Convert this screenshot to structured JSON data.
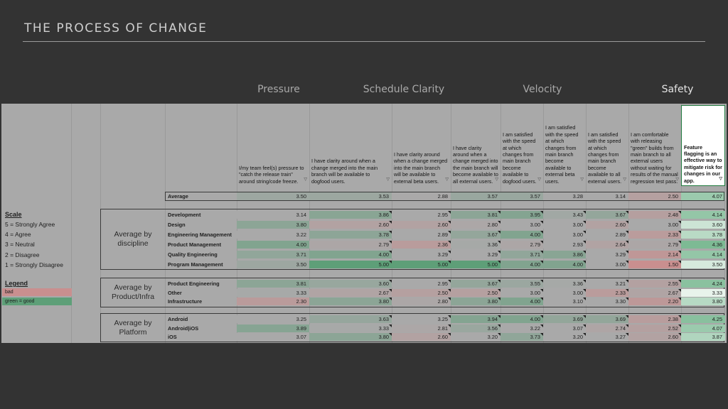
{
  "slide": {
    "title": "THE PROCESS OF CHANGE"
  },
  "categories": [
    {
      "label": "Pressure"
    },
    {
      "label": "Schedule Clarity"
    },
    {
      "label": "Velocity"
    },
    {
      "label": "Safety"
    }
  ],
  "questions": [
    "I/my team feel(s) pressure to \"catch the release train\" around string/code freeze.",
    "I have clarity around when a change merged into the main branch will be available to dogfood users.",
    "I have clarity around when a change merged into the main branch will be available to external beta users.",
    "I have clarity around when a change merged into the main branch will become available to all external users.",
    "I am satisfied with the speed at which changes from main branch become available to dogfood users.",
    "I am satisfied with the speed at which changes from main branch become available to external beta users.",
    "I am satisfied with the speed at which changes from main branch become available to all external users.",
    "I am comfortable with releasing \"green\" builds from main branch to all external users without waiting for results of the manual regression test pass.",
    "Feature flagging is an effective way to mitigate risk for changes in our app."
  ],
  "average_row": {
    "label": "Average",
    "values": [
      "3.50",
      "3.53",
      "2.88",
      "3.57",
      "3.57",
      "3.28",
      "3.14",
      "2.50",
      "4.07"
    ]
  },
  "groups": [
    {
      "title": "Average by discipline",
      "rows": [
        {
          "label": "Development",
          "values": [
            "3.14",
            "3.86",
            "2.95",
            "3.81",
            "3.95",
            "3.43",
            "3.67",
            "2.48",
            "4.14"
          ]
        },
        {
          "label": "Design",
          "values": [
            "3.80",
            "2.60",
            "2.60",
            "2.80",
            "3.00",
            "3.00",
            "2.60",
            "3.00",
            "3.60"
          ]
        },
        {
          "label": "Engineering Management",
          "values": [
            "3.22",
            "3.78",
            "2.89",
            "3.67",
            "4.00",
            "3.00",
            "2.89",
            "2.33",
            "3.78"
          ]
        },
        {
          "label": "Product Management",
          "values": [
            "4.00",
            "2.79",
            "2.36",
            "3.36",
            "2.79",
            "2.93",
            "2.64",
            "2.79",
            "4.36"
          ]
        },
        {
          "label": "Quality Engineering",
          "values": [
            "3.71",
            "4.00",
            "3.29",
            "3.29",
            "3.71",
            "3.86",
            "3.29",
            "2.14",
            "4.14"
          ]
        },
        {
          "label": "Program Management",
          "values": [
            "3.50",
            "5.00",
            "5.00",
            "5.00",
            "4.00",
            "4.00",
            "3.00",
            "1.50",
            "3.50"
          ]
        }
      ]
    },
    {
      "title": "Average by Product/Infra",
      "rows": [
        {
          "label": "Product Engineering",
          "values": [
            "3.81",
            "3.60",
            "2.95",
            "3.67",
            "3.55",
            "3.36",
            "3.21",
            "2.55",
            "4.24"
          ]
        },
        {
          "label": "Other",
          "values": [
            "3.33",
            "2.67",
            "2.50",
            "2.50",
            "3.00",
            "3.00",
            "2.33",
            "2.67",
            "3.33"
          ]
        },
        {
          "label": "Infrastructure",
          "values": [
            "2.30",
            "3.80",
            "2.80",
            "3.80",
            "4.00",
            "3.10",
            "3.30",
            "2.20",
            "3.80"
          ]
        }
      ]
    },
    {
      "title": "Average by Platform",
      "rows": [
        {
          "label": "Android",
          "values": [
            "3.25",
            "3.63",
            "3.25",
            "3.94",
            "4.00",
            "3.69",
            "3.69",
            "2.38",
            "4.25"
          ]
        },
        {
          "label": "Android|iOS",
          "values": [
            "3.89",
            "3.33",
            "2.81",
            "3.56",
            "3.22",
            "3.07",
            "2.74",
            "2.52",
            "4.07"
          ]
        },
        {
          "label": "iOS",
          "values": [
            "3.07",
            "3.80",
            "2.60",
            "3.20",
            "3.73",
            "3.20",
            "3.27",
            "2.60",
            "3.87"
          ]
        }
      ]
    }
  ],
  "legend": {
    "scale_title": "Scale",
    "scale_items": [
      "5 = Strongly Agree",
      "4 = Agree",
      "3 = Neutral",
      "2 = Disagree",
      "1 = Strongly Disagree"
    ],
    "legend_title": "Legend",
    "bad_label": "bad",
    "good_label": "green = good"
  },
  "colors": {
    "bad": "#c98f8f",
    "good": "#5e9f78",
    "neutral": "#a9a9a9",
    "background": "#333333",
    "sheet": "#a9a9a9"
  }
}
